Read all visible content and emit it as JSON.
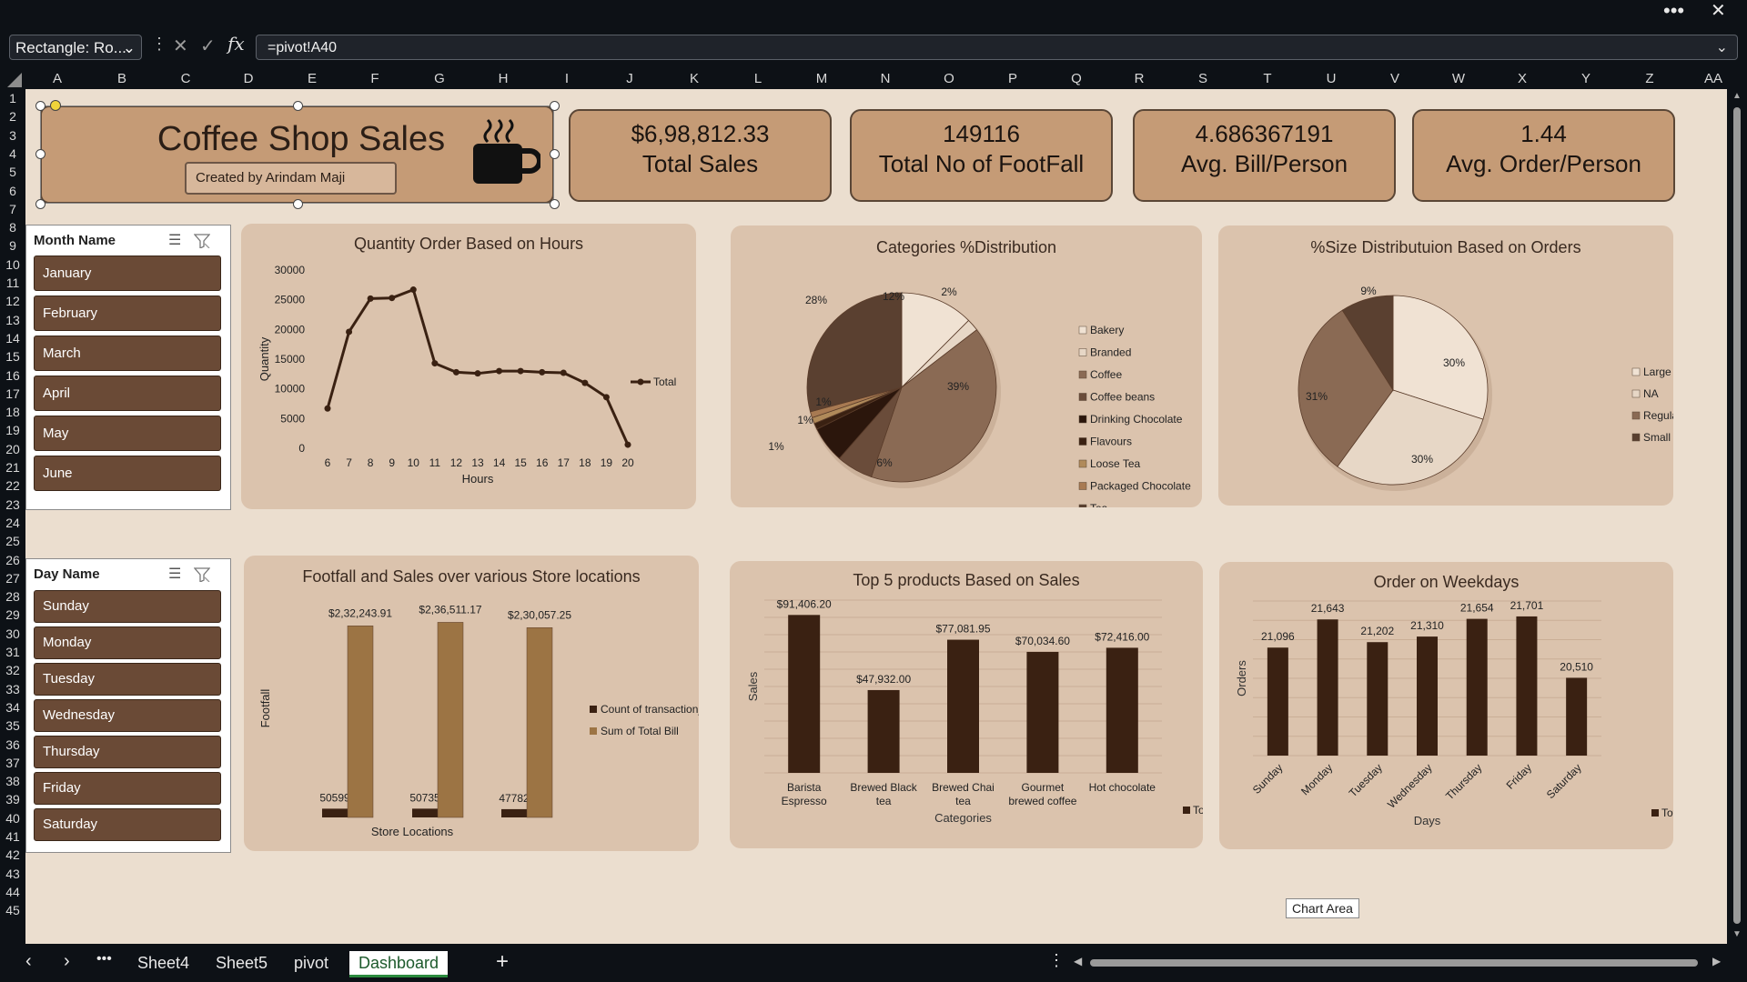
{
  "window": {
    "more_icon": "ellipsis-icon",
    "close_icon": "close-icon"
  },
  "formula_bar": {
    "name_box": "Rectangle: Ro...",
    "formula": "=pivot!A40"
  },
  "columns": [
    "A",
    "B",
    "C",
    "D",
    "E",
    "F",
    "G",
    "H",
    "I",
    "J",
    "K",
    "L",
    "M",
    "N",
    "O",
    "P",
    "Q",
    "R",
    "S",
    "T",
    "U",
    "V",
    "W",
    "X",
    "Y",
    "Z",
    "AA"
  ],
  "rows": [
    "1",
    "2",
    "3",
    "4",
    "5",
    "6",
    "7",
    "8",
    "9",
    "10",
    "11",
    "12",
    "13",
    "14",
    "15",
    "16",
    "17",
    "18",
    "19",
    "20",
    "21",
    "22",
    "23",
    "24",
    "25",
    "26",
    "27",
    "28",
    "29",
    "30",
    "31",
    "32",
    "33",
    "34",
    "35",
    "36",
    "37",
    "38",
    "39",
    "40",
    "41",
    "42",
    "43",
    "44",
    "45"
  ],
  "title": {
    "text": "Coffee Shop Sales",
    "credit": "Created by Arindam Maji"
  },
  "kpis": [
    {
      "value": "$6,98,812.33",
      "label": "Total Sales"
    },
    {
      "value": "149116",
      "label": "Total No of FootFall"
    },
    {
      "value": "4.686367191",
      "label": "Avg. Bill/Person"
    },
    {
      "value": "1.44",
      "label": "Avg. Order/Person"
    }
  ],
  "slicers": {
    "month": {
      "header": "Month Name",
      "items": [
        "January",
        "February",
        "March",
        "April",
        "May",
        "June"
      ]
    },
    "day": {
      "header": "Day Name",
      "items": [
        "Sunday",
        "Monday",
        "Tuesday",
        "Wednesday",
        "Thursday",
        "Friday",
        "Saturday"
      ]
    }
  },
  "tooltip": "Chart Area",
  "tabs": [
    "Sheet4",
    "Sheet5",
    "pivot",
    "Dashboard"
  ],
  "active_tab": "Dashboard",
  "colors": {
    "dark": "#3a2112",
    "mid": "#8a6a54",
    "light": "#f0e2d3",
    "tan": "#9c7444",
    "panel": "#dbc3ad"
  },
  "chart_data": [
    {
      "type": "line",
      "title": "Quantity Order Based on Hours",
      "xlabel": "Hours",
      "ylabel": "Quantity",
      "x": [
        6,
        7,
        8,
        9,
        10,
        11,
        12,
        13,
        14,
        15,
        16,
        17,
        18,
        19,
        20
      ],
      "series": [
        {
          "name": "Total",
          "values": [
            6700,
            19600,
            25200,
            25300,
            26700,
            14300,
            12800,
            12600,
            13000,
            13000,
            12800,
            12700,
            11000,
            8600,
            600
          ]
        }
      ],
      "ylim": [
        0,
        30000
      ],
      "yticks": [
        0,
        5000,
        10000,
        15000,
        20000,
        25000,
        30000
      ]
    },
    {
      "type": "pie",
      "title": "Categories %Distribution",
      "categories": [
        "Bakery",
        "Branded",
        "Coffee",
        "Coffee beans",
        "Drinking Chocolate",
        "Flavours",
        "Loose Tea",
        "Packaged Chocolate",
        "Tea"
      ],
      "values": [
        12,
        2,
        39,
        6,
        6,
        1,
        1,
        1,
        28
      ],
      "labels": [
        "12%",
        "2%",
        "39%",
        "6%",
        "",
        "1%",
        "1%",
        "1%",
        "28%"
      ]
    },
    {
      "type": "pie",
      "title": "%Size Distributuion Based on Orders",
      "categories": [
        "Large",
        "NA",
        "Regular",
        "Small"
      ],
      "values": [
        30,
        30,
        31,
        9
      ],
      "labels": [
        "30%",
        "30%",
        "31%",
        "9%"
      ]
    },
    {
      "type": "bar",
      "title": "Footfall  and Sales over various Store locations",
      "xlabel": "Store Locations",
      "ylabel": "Footfall",
      "categories": [
        "",
        "",
        ""
      ],
      "series": [
        {
          "name": "Count of transaction_id",
          "values": [
            50599,
            50735,
            47782
          ],
          "labels": [
            "50599",
            "50735",
            "47782"
          ]
        },
        {
          "name": "Sum of Total Bill",
          "values": [
            232243.91,
            236511.17,
            230057.25
          ],
          "labels": [
            "$2,32,243.91",
            "$2,36,511.17",
            "$2,30,057.25"
          ]
        }
      ]
    },
    {
      "type": "bar",
      "title": "Top 5 products Based on Sales",
      "xlabel": "Categories",
      "ylabel": "Sales",
      "categories": [
        [
          "Barista",
          "Espresso"
        ],
        [
          "Brewed Black",
          "tea"
        ],
        [
          "Brewed Chai",
          "tea"
        ],
        [
          "Gourmet",
          "brewed coffee"
        ],
        [
          "Hot chocolate"
        ]
      ],
      "series": [
        {
          "name": "Total",
          "values": [
            91406.2,
            47932,
            77081.95,
            70034.6,
            72416
          ],
          "labels": [
            "$91,406.20",
            "$47,932.00",
            "$77,081.95",
            "$70,034.60",
            "$72,416.00"
          ]
        }
      ],
      "ylim": [
        0,
        100000
      ]
    },
    {
      "type": "bar",
      "title": "Order on Weekdays",
      "xlabel": "Days",
      "ylabel": "Orders",
      "categories": [
        "Sunday",
        "Monday",
        "Tuesday",
        "Wednesday",
        "Thursday",
        "Friday",
        "Saturday"
      ],
      "series": [
        {
          "name": "Total",
          "values": [
            21096,
            21643,
            21202,
            21310,
            21654,
            21701,
            20510
          ],
          "labels": [
            "21,096",
            "21,643",
            "21,202",
            "21,310",
            "21,654",
            "21,701",
            "20,510"
          ]
        }
      ],
      "ylim": [
        19000,
        22000
      ]
    }
  ]
}
